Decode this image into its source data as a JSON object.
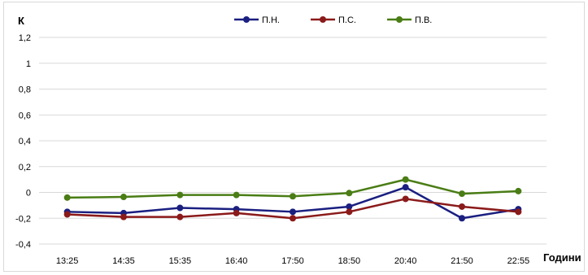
{
  "chart_data": {
    "type": "line",
    "ylabel": "К",
    "xlabel": "Години",
    "categories": [
      "13:25",
      "14:35",
      "15:35",
      "16:40",
      "17:50",
      "18:50",
      "20:40",
      "21:50",
      "22:55"
    ],
    "ylim": [
      -0.4,
      1.2
    ],
    "yticks": [
      "-0,4",
      "-0,2",
      "0",
      "0,2",
      "0,4",
      "0,6",
      "0,8",
      "1",
      "1,2"
    ],
    "ytick_values": [
      -0.4,
      -0.2,
      0,
      0.2,
      0.4,
      0.6,
      0.8,
      1.0,
      1.2
    ],
    "grid": true,
    "legend_position": "top",
    "series": [
      {
        "name": "П.Н.",
        "color": "#1a1f80",
        "values": [
          -0.15,
          -0.16,
          -0.12,
          -0.13,
          -0.15,
          -0.11,
          0.04,
          -0.2,
          -0.13
        ]
      },
      {
        "name": "П.С.",
        "color": "#8b1a1a",
        "values": [
          -0.17,
          -0.19,
          -0.19,
          -0.16,
          -0.2,
          -0.15,
          -0.05,
          -0.11,
          -0.15
        ]
      },
      {
        "name": "П.В.",
        "color": "#4a7d15",
        "values": [
          -0.04,
          -0.035,
          -0.02,
          -0.02,
          -0.03,
          -0.005,
          0.1,
          -0.01,
          0.01
        ]
      }
    ]
  }
}
